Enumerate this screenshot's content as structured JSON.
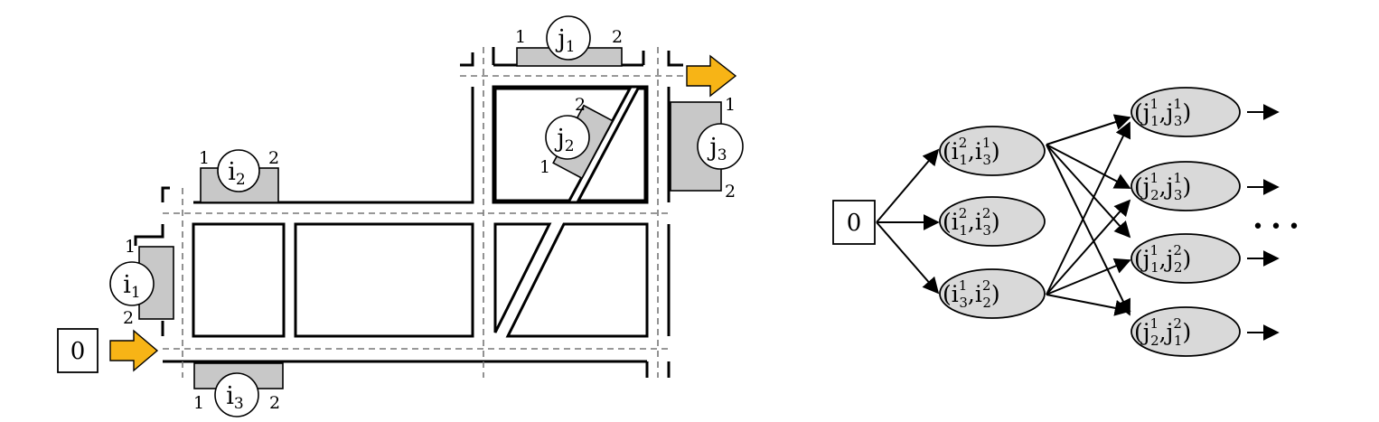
{
  "map": {
    "start_label": "0",
    "locations": [
      {
        "id": "i1",
        "base": "i",
        "sub": "1",
        "pin_a": "1",
        "pin_b": "2"
      },
      {
        "id": "i2",
        "base": "i",
        "sub": "2",
        "pin_a": "1",
        "pin_b": "2"
      },
      {
        "id": "i3",
        "base": "i",
        "sub": "3",
        "pin_a": "1",
        "pin_b": "2"
      },
      {
        "id": "j1",
        "base": "j",
        "sub": "1",
        "pin_a": "1",
        "pin_b": "2"
      },
      {
        "id": "j2",
        "base": "j",
        "sub": "2",
        "pin_a": "2",
        "pin_b": "1"
      },
      {
        "id": "j3",
        "base": "j",
        "sub": "3",
        "pin_a": "1",
        "pin_b": "2"
      }
    ],
    "arrow_color": "#f7b416",
    "dock_color": "#c8c8c8"
  },
  "graph": {
    "root_label": "0",
    "level1": [
      {
        "id": "n11",
        "a_base": "i",
        "a_sup": "2",
        "a_sub": "1",
        "b_base": "i",
        "b_sup": "1",
        "b_sub": "3"
      },
      {
        "id": "n12",
        "a_base": "i",
        "a_sup": "2",
        "a_sub": "1",
        "b_base": "i",
        "b_sup": "2",
        "b_sub": "3"
      },
      {
        "id": "n13",
        "a_base": "i",
        "a_sup": "1",
        "a_sub": "3",
        "b_base": "i",
        "b_sup": "2",
        "b_sub": "2"
      }
    ],
    "level2": [
      {
        "id": "n21",
        "a_base": "j",
        "a_sup": "1",
        "a_sub": "1",
        "b_base": "j",
        "b_sup": "1",
        "b_sub": "3"
      },
      {
        "id": "n22",
        "a_base": "j",
        "a_sup": "1",
        "a_sub": "2",
        "b_base": "j",
        "b_sup": "1",
        "b_sub": "3"
      },
      {
        "id": "n23",
        "a_base": "j",
        "a_sup": "1",
        "a_sub": "1",
        "b_base": "j",
        "b_sup": "2",
        "b_sub": "2"
      },
      {
        "id": "n24",
        "a_base": "j",
        "a_sup": "1",
        "a_sub": "2",
        "b_base": "j",
        "b_sup": "2",
        "b_sub": "1"
      }
    ],
    "ellipsis": "• • •",
    "node_fill": "#d9d9d9"
  }
}
